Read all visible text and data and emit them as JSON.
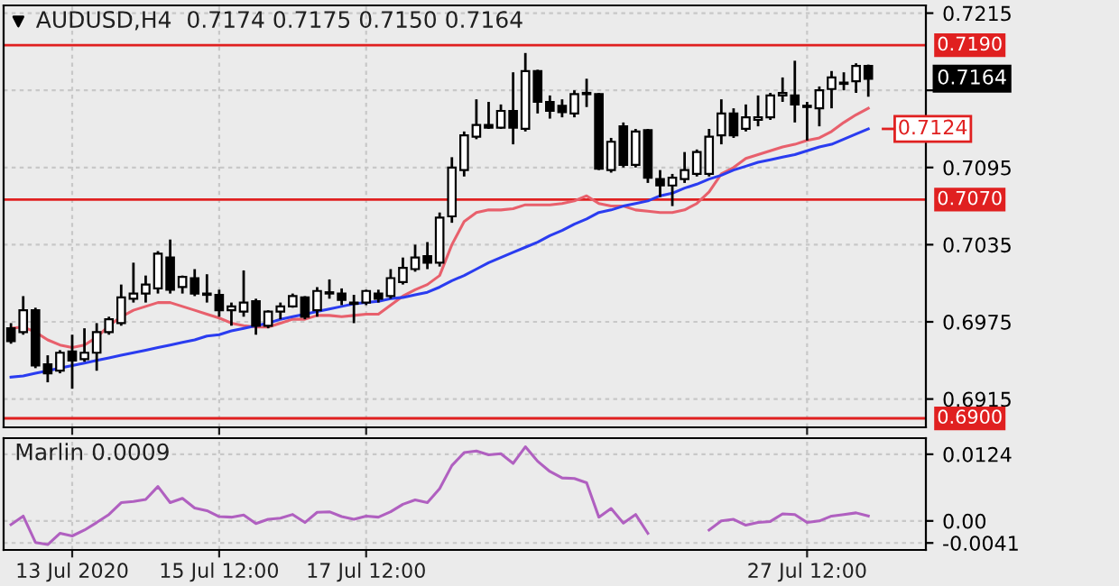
{
  "chart_data": [
    {
      "type": "candlestick",
      "title": "AUDUSD,H4  0.7174 0.7175 0.7150 0.7164",
      "categories": [
        null,
        null,
        null,
        null,
        null,
        null,
        null,
        null,
        null,
        null,
        null,
        null,
        null,
        null,
        null,
        null,
        null,
        null,
        null,
        null,
        null,
        null,
        null,
        null,
        null,
        null,
        null,
        null,
        null,
        null,
        null,
        null,
        null,
        null,
        null,
        null,
        null,
        null,
        null,
        null,
        null,
        null,
        null,
        null,
        null,
        null,
        null,
        null,
        null,
        null,
        null,
        null,
        null,
        null,
        null,
        null,
        null,
        null,
        null,
        null,
        null,
        null,
        null,
        null,
        null,
        null,
        null,
        null,
        null,
        null,
        null
      ],
      "ohlc": [
        [
          0.697,
          0.6974,
          0.6958,
          0.696
        ],
        [
          0.6967,
          0.6995,
          0.6965,
          0.6984
        ],
        [
          0.6984,
          0.6986,
          0.6939,
          0.6941
        ],
        [
          0.6942,
          0.6949,
          0.6928,
          0.6935
        ],
        [
          0.6937,
          0.6953,
          0.6935,
          0.6951
        ],
        [
          0.6952,
          0.6965,
          0.6923,
          0.6945
        ],
        [
          0.6946,
          0.697,
          0.6944,
          0.6951
        ],
        [
          0.6951,
          0.6974,
          0.6937,
          0.6967
        ],
        [
          0.6967,
          0.6979,
          0.6965,
          0.6977
        ],
        [
          0.6974,
          0.7004,
          0.6972,
          0.6994
        ],
        [
          0.6993,
          0.7021,
          0.699,
          0.6997
        ],
        [
          0.6997,
          0.7011,
          0.699,
          0.7004
        ],
        [
          0.7001,
          0.703,
          0.6997,
          0.7028
        ],
        [
          0.7025,
          0.7039,
          0.6997,
          0.7
        ],
        [
          0.7002,
          0.7011,
          0.6997,
          0.701
        ],
        [
          0.7009,
          0.7016,
          0.6995,
          0.6997
        ],
        [
          0.6997,
          0.7012,
          0.699,
          0.6996
        ],
        [
          0.6996,
          0.7,
          0.6979,
          0.6984
        ],
        [
          0.6984,
          0.699,
          0.6972,
          0.6987
        ],
        [
          0.6983,
          0.7015,
          0.6979,
          0.699
        ],
        [
          0.6991,
          0.6993,
          0.6965,
          0.6972
        ],
        [
          0.6972,
          0.6984,
          0.697,
          0.6983
        ],
        [
          0.6983,
          0.699,
          0.6977,
          0.6987
        ],
        [
          0.6987,
          0.6997,
          0.6986,
          0.6995
        ],
        [
          0.6994,
          0.6995,
          0.6977,
          0.6979
        ],
        [
          0.6984,
          0.7002,
          0.6979,
          0.6999
        ],
        [
          0.6997,
          0.7008,
          0.6993,
          0.6998
        ],
        [
          0.6997,
          0.7001,
          0.6988,
          0.6992
        ],
        [
          0.6989,
          0.6996,
          0.6974,
          0.699
        ],
        [
          0.699,
          0.7,
          0.6988,
          0.6999
        ],
        [
          0.6997,
          0.7,
          0.699,
          0.6993
        ],
        [
          0.6995,
          0.7016,
          0.6993,
          0.7009
        ],
        [
          0.7006,
          0.7025,
          0.7004,
          0.7017
        ],
        [
          0.7016,
          0.7035,
          0.7014,
          0.7025
        ],
        [
          0.7026,
          0.7037,
          0.7016,
          0.7021
        ],
        [
          0.7021,
          0.706,
          0.7018,
          0.7056
        ],
        [
          0.7057,
          0.7103,
          0.7052,
          0.7095
        ],
        [
          0.7093,
          0.7123,
          0.7088,
          0.712
        ],
        [
          0.7119,
          0.7148,
          0.7117,
          0.7128
        ],
        [
          0.7128,
          0.7146,
          0.7125,
          0.7126
        ],
        [
          0.7126,
          0.7144,
          0.7125,
          0.7139
        ],
        [
          0.7139,
          0.7169,
          0.7113,
          0.7126
        ],
        [
          0.7125,
          0.7184,
          0.7123,
          0.717
        ],
        [
          0.717,
          0.7171,
          0.7137,
          0.7146
        ],
        [
          0.7146,
          0.7151,
          0.7133,
          0.7139
        ],
        [
          0.7143,
          0.7148,
          0.7134,
          0.7138
        ],
        [
          0.7137,
          0.7155,
          0.7134,
          0.7152
        ],
        [
          0.7152,
          0.7164,
          0.7142,
          0.7153
        ],
        [
          0.7152,
          0.7153,
          0.7093,
          0.7094
        ],
        [
          0.7093,
          0.7118,
          0.7091,
          0.7115
        ],
        [
          0.7127,
          0.713,
          0.7095,
          0.7097
        ],
        [
          0.7097,
          0.7125,
          0.7095,
          0.7123
        ],
        [
          0.7124,
          0.7125,
          0.7083,
          0.7087
        ],
        [
          0.7086,
          0.7093,
          0.7072,
          0.7081
        ],
        [
          0.7081,
          0.709,
          0.7065,
          0.7087
        ],
        [
          0.7086,
          0.7107,
          0.7083,
          0.7093
        ],
        [
          0.709,
          0.7109,
          0.7088,
          0.7107
        ],
        [
          0.709,
          0.7125,
          0.7088,
          0.7119
        ],
        [
          0.712,
          0.7148,
          0.7113,
          0.7137
        ],
        [
          0.7137,
          0.7141,
          0.7118,
          0.712
        ],
        [
          0.7125,
          0.7144,
          0.7123,
          0.7134
        ],
        [
          0.7132,
          0.7151,
          0.7127,
          0.7134
        ],
        [
          0.7134,
          0.7153,
          0.7132,
          0.7151
        ],
        [
          0.7151,
          0.7165,
          0.7146,
          0.7153
        ],
        [
          0.7151,
          0.7178,
          0.713,
          0.7144
        ],
        [
          0.7142,
          0.7146,
          0.7116,
          0.7143
        ],
        [
          0.7141,
          0.7158,
          0.7127,
          0.7155
        ],
        [
          0.7156,
          0.717,
          0.7141,
          0.7165
        ],
        [
          0.7161,
          0.7169,
          0.7155,
          0.716
        ],
        [
          0.7162,
          0.7176,
          0.7153,
          0.7174
        ],
        [
          0.7174,
          0.7175,
          0.715,
          0.7164
        ]
      ],
      "series": [
        {
          "type": "line",
          "color": "#e8606c",
          "values": [
            0.697,
            0.6971,
            0.6967,
            0.6961,
            0.6957,
            0.6955,
            0.6957,
            0.6963,
            0.6972,
            0.6979,
            0.6984,
            0.6987,
            0.699,
            0.699,
            0.6987,
            0.6984,
            0.6981,
            0.6978,
            0.6974,
            0.6972,
            0.6971,
            0.6971,
            0.6974,
            0.6977,
            0.6977,
            0.698,
            0.698,
            0.6979,
            0.698,
            0.6981,
            0.6981,
            0.6988,
            0.6995,
            0.7,
            0.7004,
            0.7011,
            0.7035,
            0.7053,
            0.706,
            0.7062,
            0.7062,
            0.7063,
            0.7066,
            0.7066,
            0.7066,
            0.7067,
            0.7069,
            0.7073,
            0.7067,
            0.7065,
            0.7065,
            0.7062,
            0.7061,
            0.706,
            0.706,
            0.7062,
            0.7067,
            0.7076,
            0.709,
            0.7095,
            0.7102,
            0.7105,
            0.7108,
            0.7111,
            0.7113,
            0.7116,
            0.7118,
            0.7123,
            0.713,
            0.7136,
            0.7141
          ]
        },
        {
          "type": "line",
          "color": "#2a3cf0",
          "values": [
            0.6932,
            0.6933,
            0.6935,
            0.6937,
            0.6939,
            0.6941,
            0.6943,
            0.6945,
            0.6947,
            0.6949,
            0.6951,
            0.6953,
            0.6955,
            0.6957,
            0.6959,
            0.6961,
            0.6964,
            0.6965,
            0.6968,
            0.697,
            0.6972,
            0.6974,
            0.6977,
            0.6979,
            0.6981,
            0.6983,
            0.6985,
            0.6987,
            0.6989,
            0.699,
            0.6991,
            0.6993,
            0.6994,
            0.6996,
            0.6998,
            0.7002,
            0.7007,
            0.7011,
            0.7016,
            0.7021,
            0.7025,
            0.7029,
            0.7033,
            0.7037,
            0.7042,
            0.7046,
            0.7051,
            0.7055,
            0.706,
            0.7062,
            0.7065,
            0.7067,
            0.7069,
            0.7073,
            0.7075,
            0.7079,
            0.7082,
            0.7086,
            0.7089,
            0.7093,
            0.7096,
            0.7099,
            0.7101,
            0.7103,
            0.7105,
            0.7108,
            0.7111,
            0.7113,
            0.7117,
            0.7121,
            0.7125
          ]
        }
      ],
      "ylim": [
        0.6893,
        0.7221
      ],
      "yticks": [
        0.7215,
        {
          "value": 0.7155,
          "label": null
        },
        0.7095,
        0.7035,
        0.6975,
        0.6915
      ],
      "ref_lines": [
        {
          "axis": "y",
          "value": 0.719,
          "label": "0.7190",
          "color": "#e02020"
        },
        {
          "axis": "y",
          "value": 0.707,
          "label": "0.7070",
          "color": "#e02020"
        },
        {
          "axis": "y",
          "value": 0.69,
          "label": "0.6900",
          "color": "#e02020"
        }
      ],
      "annotations": [
        "0.7164",
        "0.7124"
      ],
      "grid": true,
      "tick_labels": "y"
    },
    {
      "type": "line",
      "title": "Marlin 0.0009",
      "categories": [
        null,
        null,
        null,
        null,
        null,
        "13 Jul 2020",
        null,
        null,
        null,
        null,
        null,
        null,
        null,
        null,
        null,
        null,
        null,
        "15 Jul 12:00",
        null,
        null,
        null,
        null,
        null,
        null,
        null,
        null,
        null,
        null,
        null,
        "17 Jul 12:00",
        null,
        null,
        null,
        null,
        null,
        null,
        null,
        null,
        null,
        null,
        null,
        null,
        null,
        null,
        null,
        null,
        null,
        null,
        null,
        null,
        null,
        null,
        null,
        null,
        null,
        null,
        null,
        null,
        null,
        null,
        null,
        null,
        null,
        null,
        null,
        "27 Jul 12:00",
        null,
        null,
        null,
        null,
        null
      ],
      "series": [
        {
          "color": "#b060c0",
          "values": [
            -0.0007,
            0.0009,
            -0.004,
            -0.0044,
            -0.0023,
            -0.0028,
            -0.0017,
            -0.0003,
            0.0012,
            0.0034,
            0.0036,
            0.004,
            0.0064,
            0.0034,
            0.0042,
            0.0024,
            0.0019,
            0.0008,
            0.0007,
            0.0011,
            -0.0005,
            0.0003,
            0.0005,
            0.0012,
            -0.0003,
            0.0016,
            0.0017,
            0.0008,
            0.0003,
            0.0009,
            0.0007,
            0.0017,
            0.0031,
            0.0039,
            0.0034,
            0.006,
            0.0103,
            0.0127,
            0.013,
            0.0123,
            0.0125,
            0.0107,
            0.0138,
            0.0111,
            0.0092,
            0.008,
            0.0079,
            0.0071,
            0.0007,
            0.0023,
            -0.0004,
            0.0012,
            -0.0023,
            null,
            null,
            null,
            null,
            -0.0017,
            0.0,
            0.0003,
            -0.0008,
            -0.0003,
            -0.0001,
            0.0013,
            0.0012,
            -0.0003,
            0.0,
            0.0009,
            0.0012,
            0.0015,
            0.0009
          ]
        }
      ],
      "ylim": [
        -0.0054,
        0.0154
      ],
      "yticks": [
        0.0124,
        {
          "value": 0,
          "label": "0.00"
        },
        -0.0041
      ],
      "grid": true
    }
  ]
}
